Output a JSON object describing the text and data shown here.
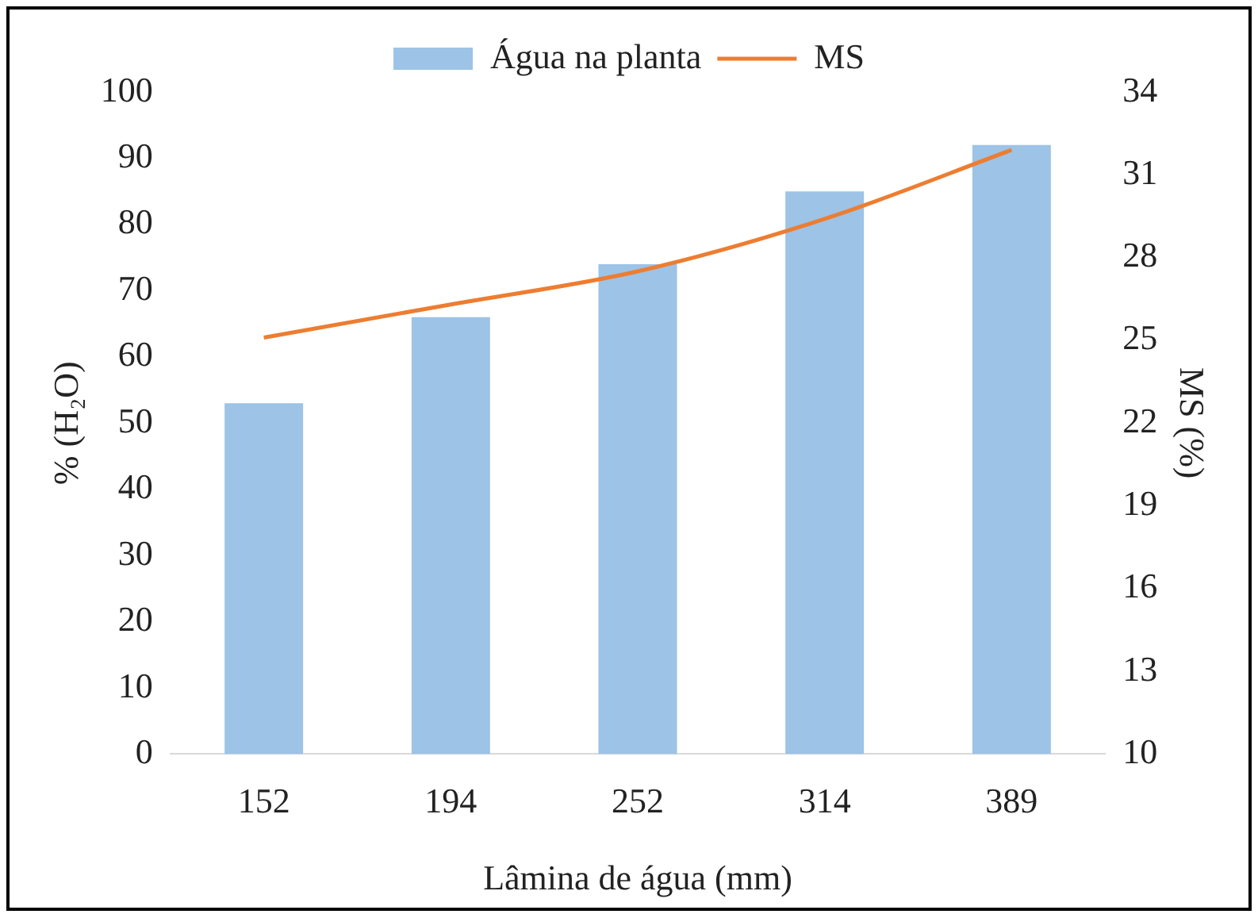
{
  "chart_data": {
    "type": "bar",
    "xlabel": "Lâmina de água (mm)",
    "ylabel": "% (H₂O)",
    "y2label": "MS (%)",
    "categories": [
      "152",
      "194",
      "252",
      "314",
      "389"
    ],
    "series": [
      {
        "name": "Água na planta",
        "color": "#9dc3e6",
        "values": [
          53,
          66,
          74,
          85,
          92
        ]
      },
      {
        "name": "MS",
        "type": "line",
        "axis": "y2",
        "color": "#ed7d31",
        "values": [
          25.1,
          26.3,
          27.5,
          29.4,
          31.9
        ]
      }
    ],
    "ylim": [
      0,
      100
    ],
    "yticks": [
      0,
      10,
      20,
      30,
      40,
      50,
      60,
      70,
      80,
      90,
      100
    ],
    "y2lim": [
      10,
      34
    ],
    "y2ticks": [
      10,
      13,
      16,
      19,
      22,
      25,
      28,
      31,
      34
    ],
    "grid": false,
    "legend": "top",
    "marker": "none",
    "line_style": "solid"
  }
}
